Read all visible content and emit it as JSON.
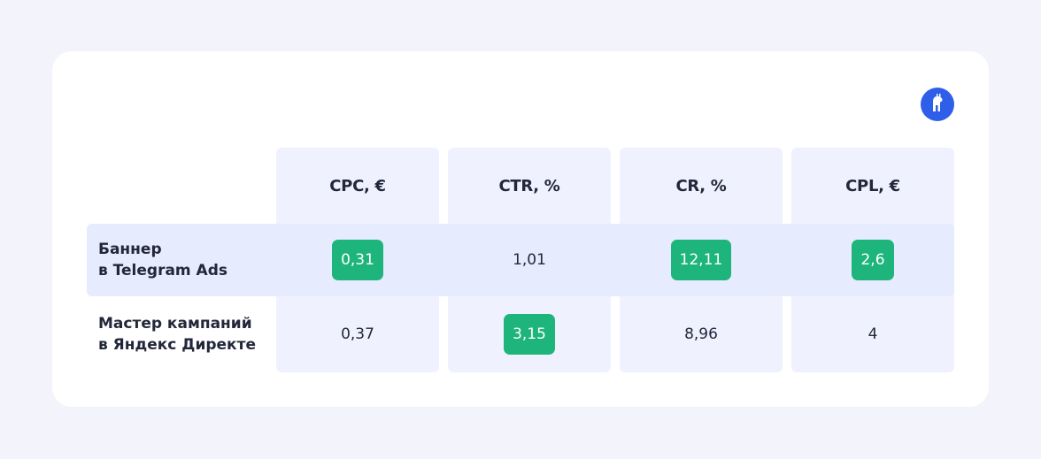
{
  "columns": [
    "CPC, €",
    "CTR, %",
    "CR, %",
    "CPL, €"
  ],
  "rows": [
    {
      "label_line1": "Баннер",
      "label_line2": "в Telegram Ads",
      "values": [
        "0,31",
        "1,01",
        "12,11",
        "2,6"
      ],
      "highlighted": [
        true,
        false,
        true,
        true
      ]
    },
    {
      "label_line1": "Мастер кампаний",
      "label_line2": "в Яндекс Директе",
      "values": [
        "0,37",
        "3,15",
        "8,96",
        "4"
      ],
      "highlighted": [
        false,
        true,
        false,
        false
      ]
    }
  ],
  "colors": {
    "highlight_badge": "#1db57c",
    "logo": "#2f5fe8",
    "column_bg": "#eff2fe",
    "row_band": "#e6ebfd"
  },
  "icons": {
    "logo": "llama-logo-icon"
  }
}
